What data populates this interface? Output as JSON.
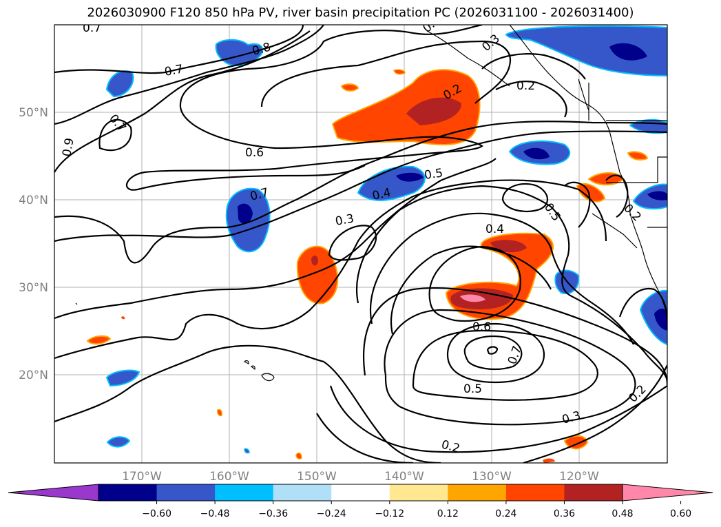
{
  "title": "2026030900 F120 850 hPa PV, river basin precipitation PC (2026031100 - 2026031400)",
  "map": {
    "lat_labels": [
      "50°N",
      "40°N",
      "30°N",
      "20°N"
    ],
    "lon_labels": [
      "170°W",
      "160°W",
      "150°W",
      "140°W",
      "130°W",
      "120°W"
    ],
    "contour_labels": [
      "0.7",
      "0.8",
      "0.7",
      "0.7",
      "0.9",
      "0.6",
      "0.5",
      "0.4",
      "0.3",
      "0.4",
      "0.2",
      "0.3",
      "0.2",
      "0.7",
      "0.6",
      "0.5",
      "0.7",
      "0.5",
      "0.2",
      "0.3",
      "0.2",
      "0.2",
      "0.5"
    ]
  },
  "colorbar": {
    "colors": [
      "#9a37cc",
      "#00008b",
      "#3657c9",
      "#00bfff",
      "#afe0f8",
      "#ffffff",
      "#ffe88f",
      "#ffa500",
      "#ff4500",
      "#b22222",
      "#ff88aa"
    ],
    "tick_labels": [
      "−0.60",
      "−0.48",
      "−0.36",
      "−0.24",
      "−0.12",
      "0.12",
      "0.24",
      "0.36",
      "0.48",
      "0.60"
    ]
  }
}
